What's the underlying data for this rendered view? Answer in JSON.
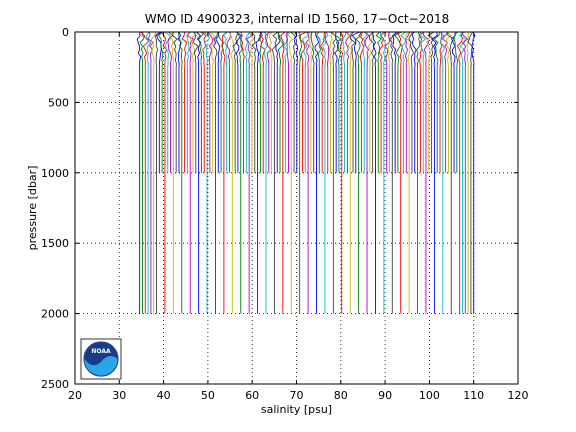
{
  "chart_data": {
    "type": "line",
    "title": "WMO ID 4900323, internal ID 1560, 17−Oct−2018",
    "xlabel": "salinity [psu]",
    "ylabel": "pressure [dbar]",
    "xlim": [
      20,
      120
    ],
    "ylim": [
      2500,
      0
    ],
    "y_reversed": true,
    "grid": true,
    "grid_style": "dotted",
    "x_ticks": [
      "20",
      "30",
      "40",
      "50",
      "60",
      "70",
      "80",
      "90",
      "100",
      "110",
      "120"
    ],
    "y_ticks": [
      "0",
      "500",
      "1000",
      "1500",
      "2000",
      "2500"
    ],
    "profiles": {
      "description": "many vertical salinity profiles, each offset",
      "salinity_start": 34.6,
      "salinity_end": 110.0,
      "count": 120,
      "max_pressure_short": 1000,
      "max_pressure_long": 2000,
      "surface_pressure": 0
    },
    "series_colors": [
      "#0000ff",
      "#008000",
      "#ff0000",
      "#00bfbf",
      "#bf00bf",
      "#bfbf00",
      "#404040"
    ]
  },
  "logo": {
    "text": "NOAA"
  }
}
